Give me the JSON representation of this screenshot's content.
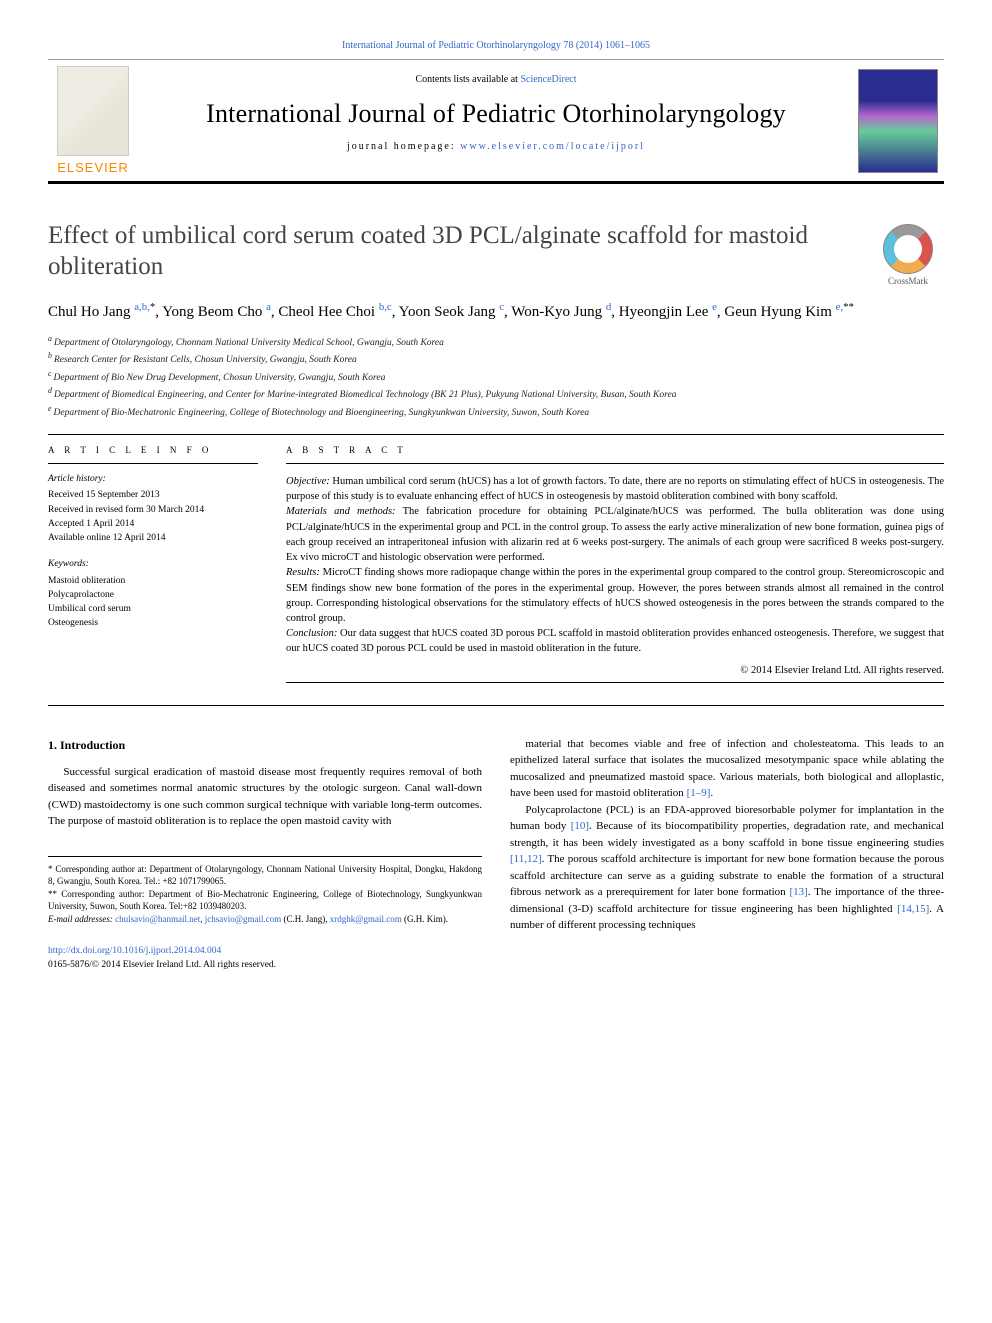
{
  "top_citation": "International Journal of Pediatric Otorhinolaryngology 78 (2014) 1061–1065",
  "header": {
    "contents_prefix": "Contents lists available at ",
    "contents_link": "ScienceDirect",
    "journal_name": "International Journal of Pediatric Otorhinolaryngology",
    "homepage_prefix": "journal homepage: ",
    "homepage_link": "www.elsevier.com/locate/ijporl",
    "elsevier": "ELSEVIER"
  },
  "crossmark": "CrossMark",
  "title": "Effect of umbilical cord serum coated 3D PCL/alginate scaffold for mastoid obliteration",
  "authors_html": "Chul Ho Jang <span class='sup'>a,b,</span><span class='sup-black'>*</span>, Yong Beom Cho <span class='sup'>a</span>, Cheol Hee Choi <span class='sup'>b,c</span>, Yoon Seok Jang <span class='sup'>c</span>, Won-Kyo Jung <span class='sup'>d</span>, Hyeongjin Lee <span class='sup'>e</span>, Geun Hyung Kim <span class='sup'>e,</span><span class='sup-black'>**</span>",
  "affiliations": [
    "a Department of Otolaryngology, Chonnam National University Medical School, Gwangju, South Korea",
    "b Research Center for Resistant Cells, Chosun University, Gwangju, South Korea",
    "c Department of Bio New Drug Development, Chosun University, Gwangju, South Korea",
    "d Department of Biomedical Engineering, and Center for Marine-integrated Biomedical Technology (BK 21 Plus), Pukyung National University, Busan, South Korea",
    "e Department of Bio-Mechatronic Engineering, College of Biotechnology and Bioengineering, Sungkyunkwan University, Suwon, South Korea"
  ],
  "article_info_label": "A R T I C L E   I N F O",
  "abstract_label": "A B S T R A C T",
  "history_title": "Article history:",
  "history": [
    "Received 15 September 2013",
    "Received in revised form 30 March 2014",
    "Accepted 1 April 2014",
    "Available online 12 April 2014"
  ],
  "keywords_title": "Keywords:",
  "keywords": [
    "Mastoid obliteration",
    "Polycaprolactone",
    "Umbilical cord serum",
    "Osteogenesis"
  ],
  "abstract": {
    "objective_label": "Objective:",
    "objective": "Human umbilical cord serum (hUCS) has a lot of growth factors. To date, there are no reports on stimulating effect of hUCS in osteogenesis. The purpose of this study is to evaluate enhancing effect of hUCS in osteogenesis by mastoid obliteration combined with bony scaffold.",
    "methods_label": "Materials and methods:",
    "methods": "The fabrication procedure for obtaining PCL/alginate/hUCS was performed. The bulla obliteration was done using PCL/alginate/hUCS in the experimental group and PCL in the control group. To assess the early active mineralization of new bone formation, guinea pigs of each group received an intraperitoneal infusion with alizarin red at 6 weeks post-surgery. The animals of each group were sacrificed 8 weeks post-surgery. Ex vivo microCT and histologic observation were performed.",
    "results_label": "Results:",
    "results": "MicroCT finding shows more radiopaque change within the pores in the experimental group compared to the control group. Stereomicroscopic and SEM findings show new bone formation of the pores in the experimental group. However, the pores between strands almost all remained in the control group. Corresponding histological observations for the stimulatory effects of hUCS showed osteogenesis in the pores between the strands compared to the control group.",
    "conclusion_label": "Conclusion:",
    "conclusion": "Our data suggest that hUCS coated 3D porous PCL scaffold in mastoid obliteration provides enhanced osteogenesis. Therefore, we suggest that our hUCS coated 3D porous PCL could be used in mastoid obliteration in the future."
  },
  "abs_copyright": "© 2014 Elsevier Ireland Ltd. All rights reserved.",
  "section1_heading": "1. Introduction",
  "col1_p1": "Successful surgical eradication of mastoid disease most frequently requires removal of both diseased and sometimes normal anatomic structures by the otologic surgeon. Canal wall-down (CWD) mastoidectomy is one such common surgical technique with variable long-term outcomes. The purpose of mastoid obliteration is to replace the open mastoid cavity with",
  "col2_p1_a": "material that becomes viable and free of infection and cholesteatoma. This leads to an epithelized lateral surface that isolates the mucosalized mesotympanic space while ablating the mucosalized and pneumatized mastoid space. Various materials, both biological and alloplastic, have been used for mastoid obliteration ",
  "col2_p1_ref1": "[1–9]",
  "col2_p1_b": ".",
  "col2_p2_a": "Polycaprolactone (PCL) is an FDA-approved bioresorbable polymer for implantation in the human body ",
  "col2_p2_ref1": "[10]",
  "col2_p2_b": ". Because of its biocompatibility properties, degradation rate, and mechanical strength, it has been widely investigated as a bony scaffold in bone tissue engineering studies ",
  "col2_p2_ref2": "[11,12]",
  "col2_p2_c": ". The porous scaffold architecture is important for new bone formation because the porous scaffold architecture can serve as a guiding substrate to enable the formation of a structural fibrous network as a prerequirement for later bone formation ",
  "col2_p2_ref3": "[13]",
  "col2_p2_d": ". The importance of the three-dimensional (3-D) scaffold architecture for tissue engineering has been highlighted ",
  "col2_p2_ref4": "[14,15]",
  "col2_p2_e": ". A number of different processing techniques",
  "footnotes": {
    "f1": "* Corresponding author at: Department of Otolaryngology, Chonnam National University Hospital, Dongku, Hakdong 8, Gwangju, South Korea. Tel.: +82 1071799065.",
    "f2": "** Corresponding author: Department of Bio-Mechatronic Engineering, College of Biotechnology, Sungkyunkwan University, Suwon, South Korea. Tel:+82 1039480203.",
    "email_label": "E-mail addresses: ",
    "email1": "chulsavio@hanmail.net",
    "email_sep1": ", ",
    "email2": "jchsavio@gmail.com",
    "email_aff1": " (C.H. Jang), ",
    "email3": "xrdghk@gmail.com",
    "email_aff2": " (G.H. Kim)."
  },
  "doi": "http://dx.doi.org/10.1016/j.ijporl.2014.04.004",
  "issn_line": "0165-5876/© 2014 Elsevier Ireland Ltd. All rights reserved."
}
